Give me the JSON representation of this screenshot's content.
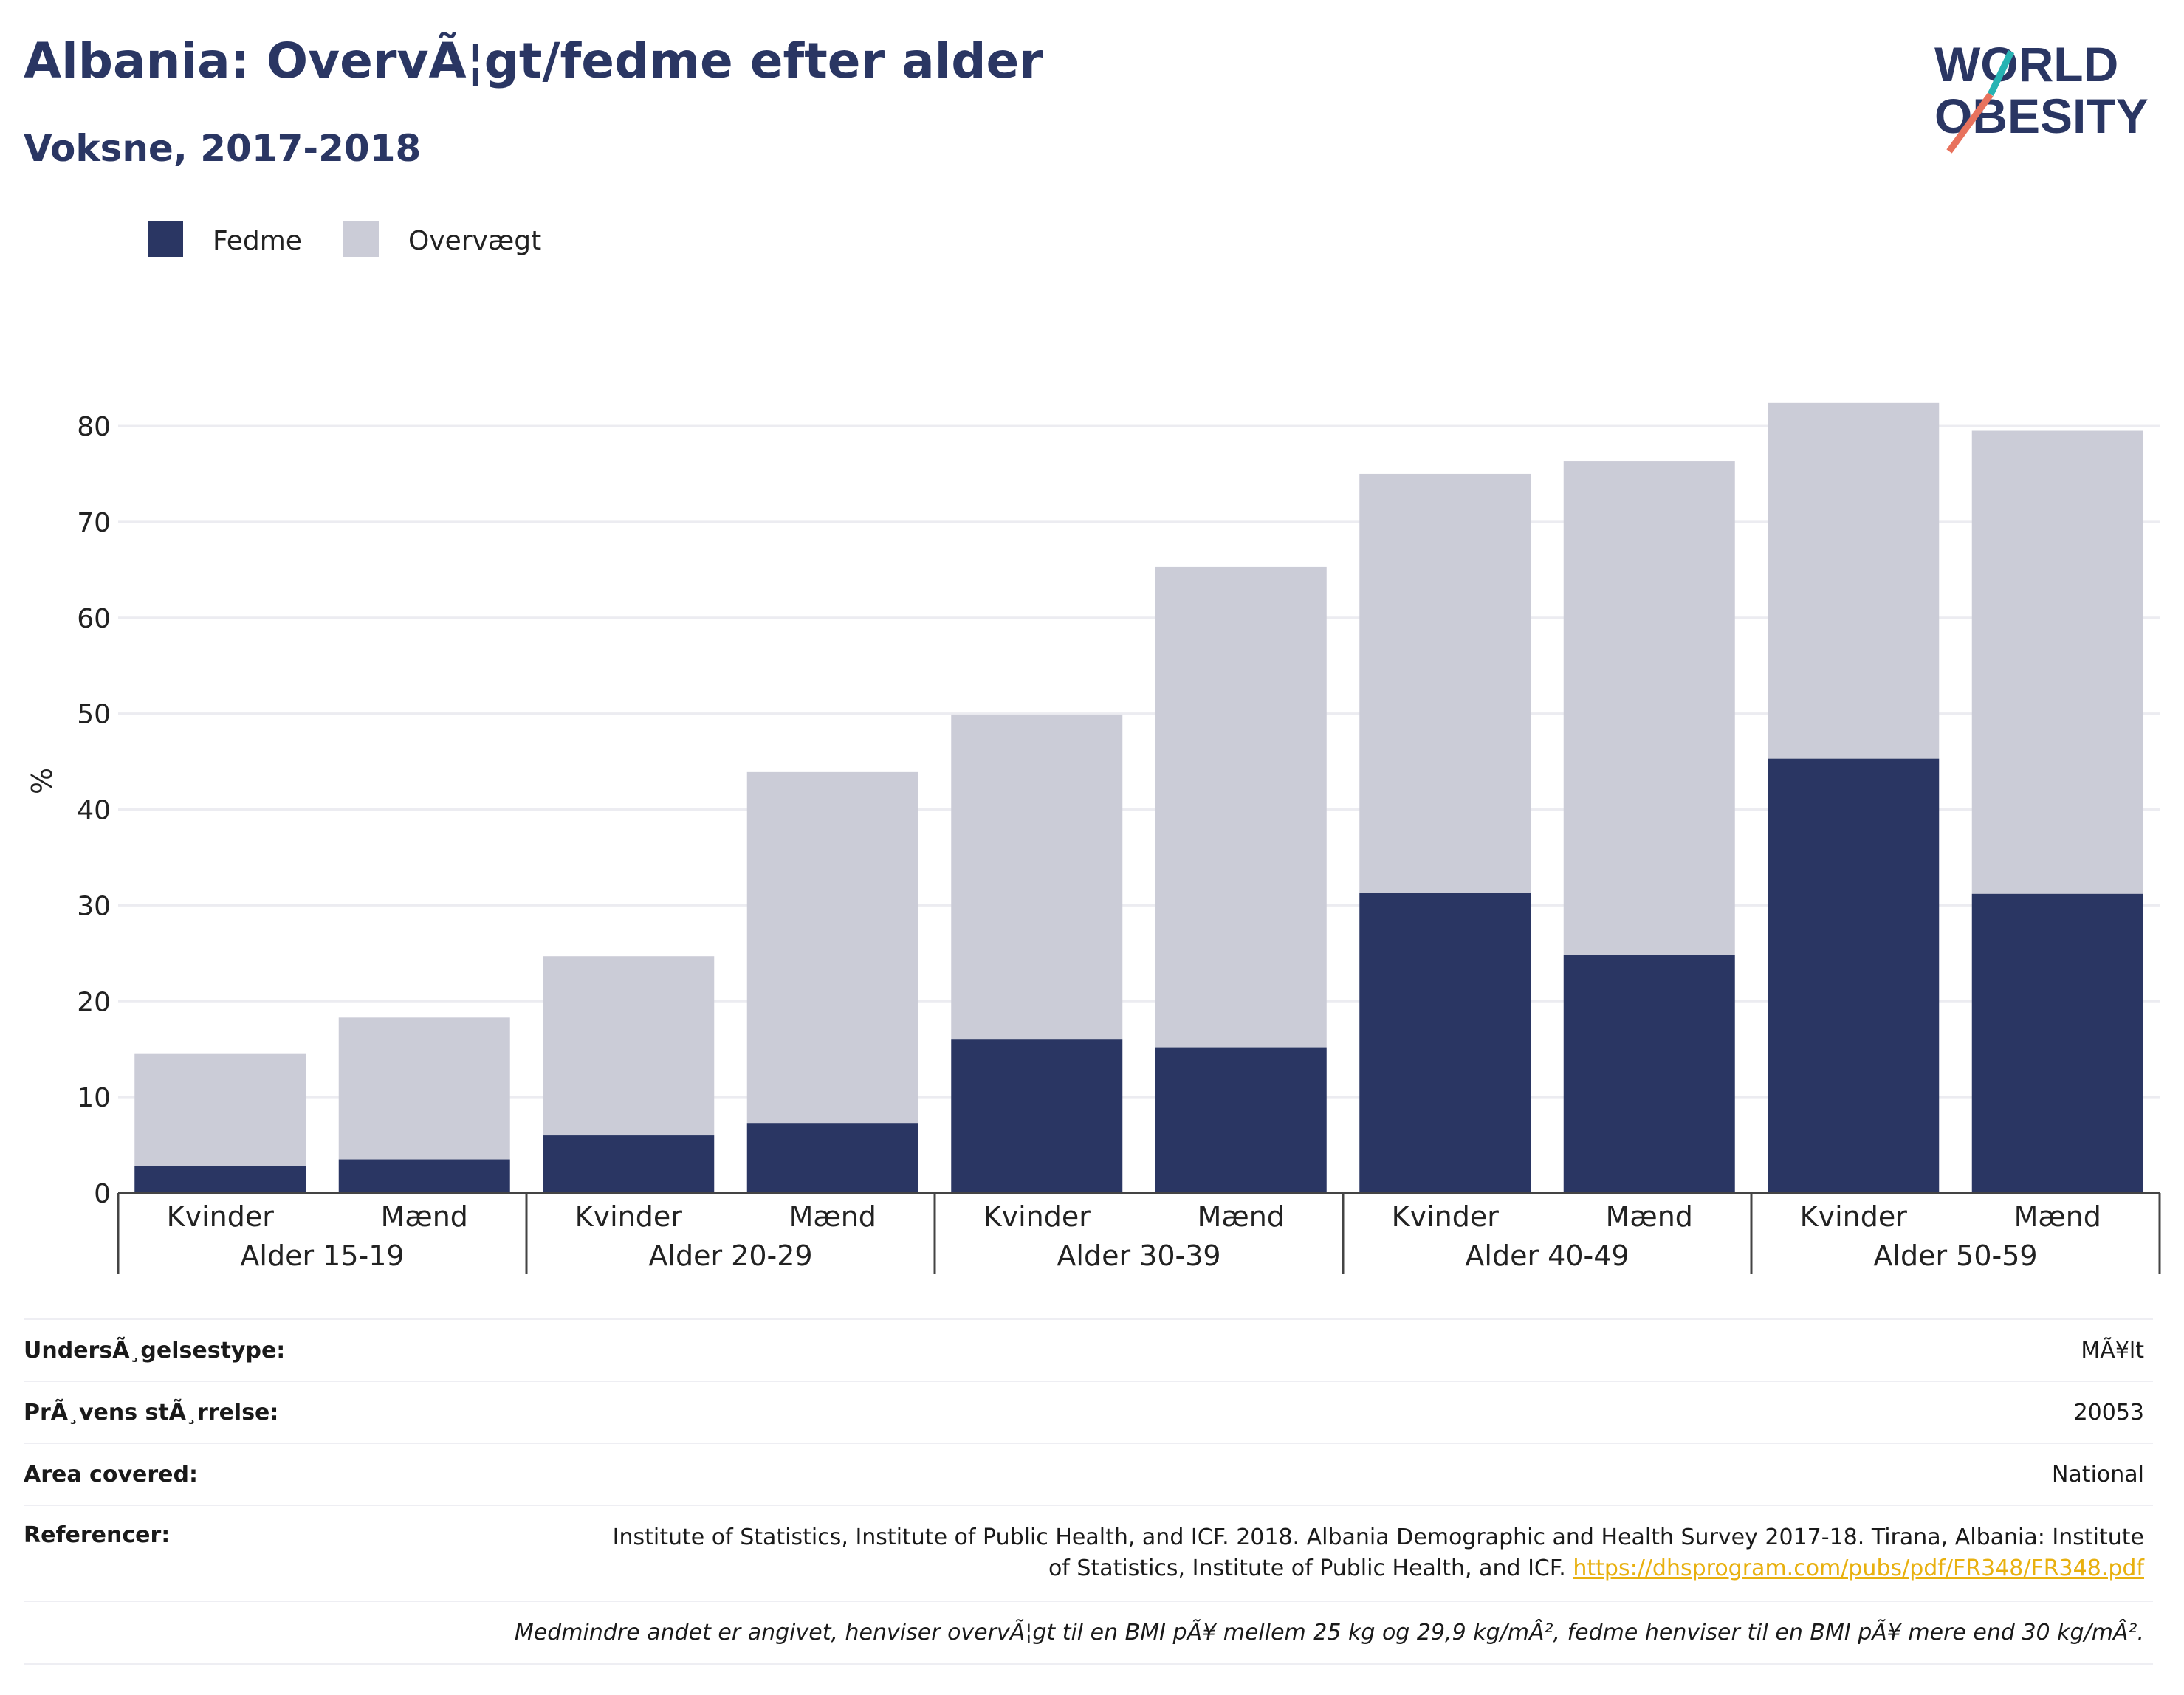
{
  "header": {
    "title": "Albania: OvervÃ¦gt/fedme efter alder",
    "subtitle": "Voksne, 2017-2018"
  },
  "logo": {
    "line1": "WORLD",
    "line2": "OBESITY",
    "icon": "world-obesity-logo"
  },
  "colors": {
    "fedme": "#2a3663",
    "overvaegt": "#cbccd7",
    "text": "#2a3663",
    "link": "#e8b00f"
  },
  "legend": [
    {
      "label": "Fedme",
      "color": "#2a3663"
    },
    {
      "label": "Overvægt",
      "color": "#cbccd7"
    }
  ],
  "chart_data": {
    "type": "bar",
    "stacked": true,
    "ylabel": "%",
    "ylim": [
      0,
      90
    ],
    "yticks": [
      0,
      10,
      20,
      30,
      40,
      50,
      60,
      70,
      80
    ],
    "grid": true,
    "legend_position": "top-left",
    "groups": [
      "Alder 15-19",
      "Alder 20-29",
      "Alder 30-39",
      "Alder 40-49",
      "Alder 50-59"
    ],
    "categories": [
      "Kvinder",
      "Mænd",
      "Kvinder",
      "Mænd",
      "Kvinder",
      "Mænd",
      "Kvinder",
      "Mænd",
      "Kvinder",
      "Mænd"
    ],
    "series": [
      {
        "name": "Fedme",
        "values": [
          2.8,
          3.5,
          6.0,
          7.3,
          16.0,
          15.2,
          31.3,
          24.8,
          45.3,
          31.2
        ]
      },
      {
        "name": "Overvægt",
        "values": [
          11.7,
          14.8,
          18.7,
          36.6,
          33.9,
          50.1,
          43.7,
          51.5,
          37.1,
          48.3
        ]
      }
    ]
  },
  "info": {
    "survey_type_label": "UndersÃ¸gelsestype:",
    "survey_type_value": "MÃ¥lt",
    "sample_size_label": "PrÃ¸vens stÃ¸rrelse:",
    "sample_size_value": "20053",
    "area_label": "Area covered:",
    "area_value": "National",
    "references_label": "Referencer:",
    "references_text": "Institute of Statistics, Institute of Public Health, and ICF. 2018. Albania Demographic and Health Survey 2017-18. Tirana, Albania: Institute of Statistics, Institute of Public Health, and ICF.",
    "references_link": "https://dhsprogram.com/pubs/pdf/FR348/FR348.pdf",
    "note": "Medmindre andet er angivet, henviser overvÃ¦gt til en BMI pÃ¥ mellem 25 kg og 29,9 kg/mÂ², fedme henviser til en BMI pÃ¥ mere end 30 kg/mÂ²."
  }
}
